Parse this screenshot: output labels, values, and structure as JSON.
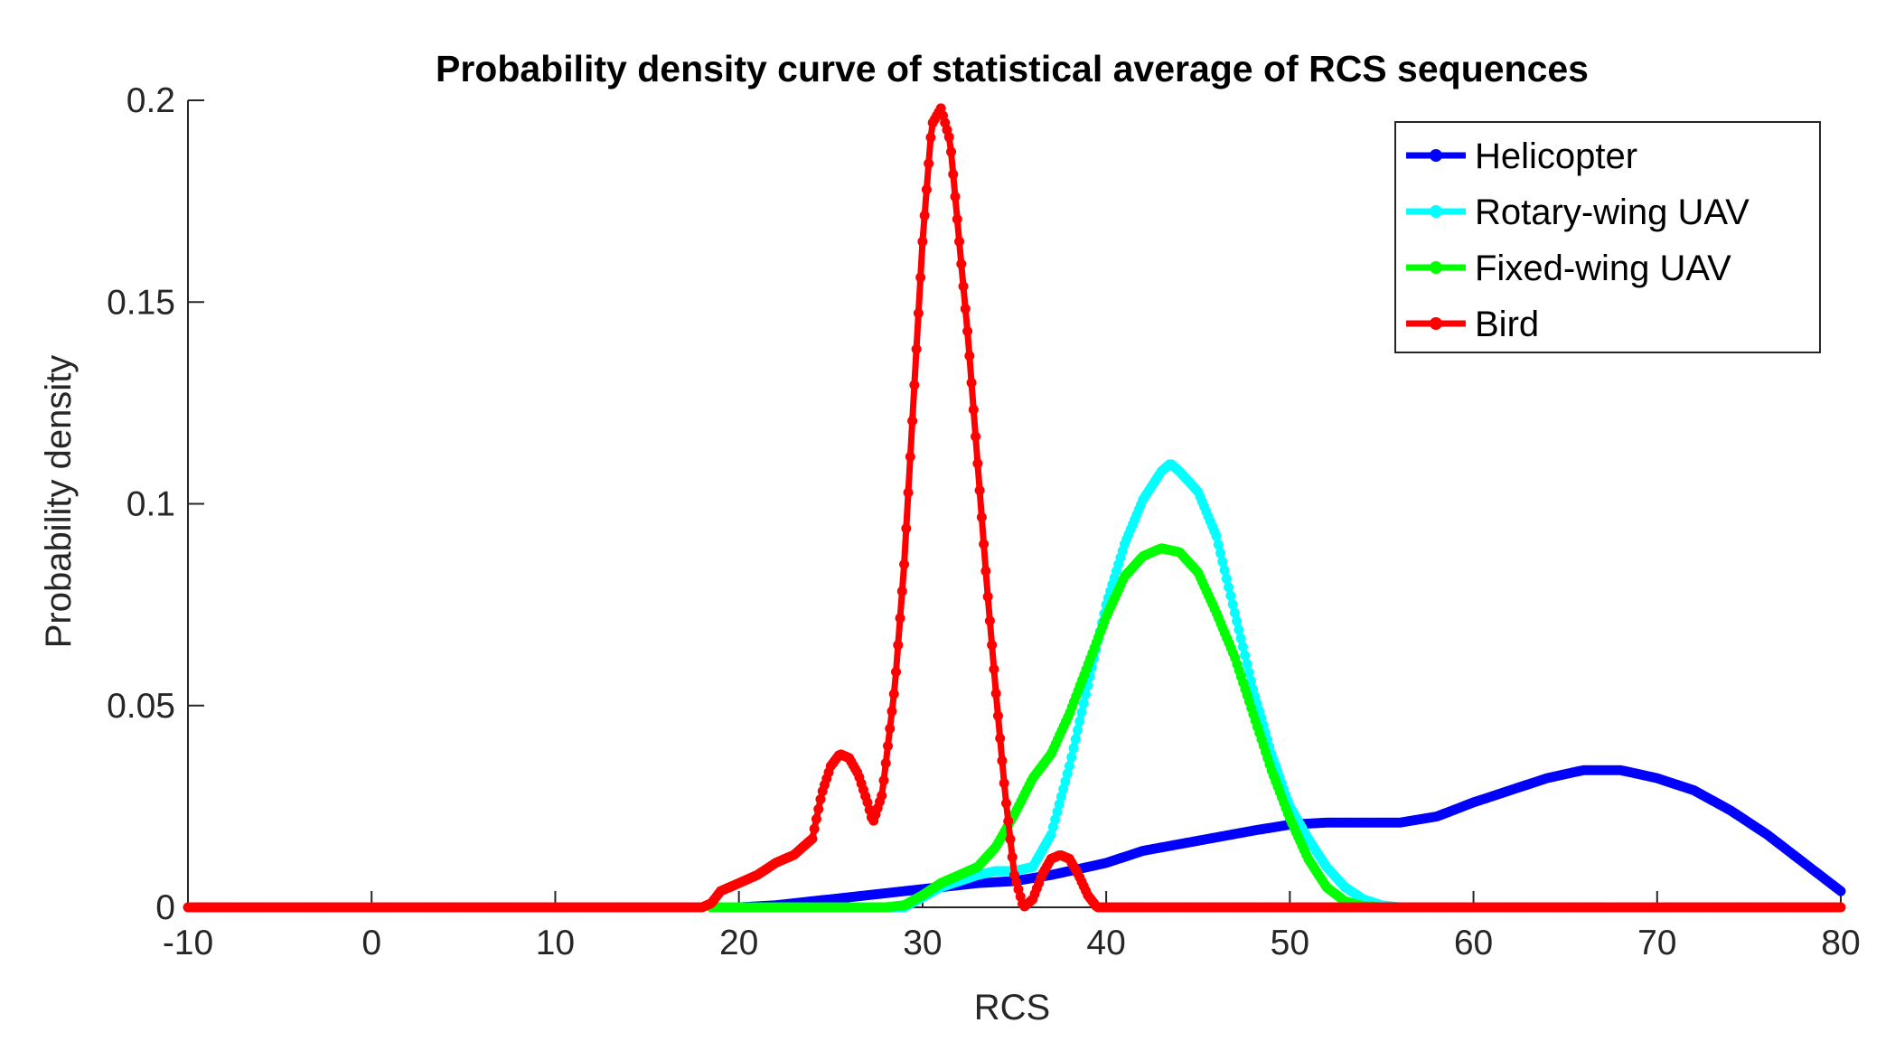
{
  "chart_data": {
    "type": "line",
    "title": "Probability density curve of statistical average of RCS sequences",
    "xlabel": "RCS",
    "ylabel": "Probability density",
    "xlim": [
      -10,
      80
    ],
    "ylim": [
      0,
      0.2
    ],
    "x_ticks": [
      "-10",
      "0",
      "10",
      "20",
      "30",
      "40",
      "50",
      "60",
      "70",
      "80"
    ],
    "y_ticks": [
      "0",
      "0.05",
      "0.1",
      "0.15",
      "0.2"
    ],
    "legend_position": "top-right",
    "series": [
      {
        "name": "Helicopter",
        "color": "#0000ff",
        "points": [
          [
            20,
            0
          ],
          [
            22,
            0.0005
          ],
          [
            25,
            0.002
          ],
          [
            28,
            0.0035
          ],
          [
            30,
            0.0045
          ],
          [
            33,
            0.006
          ],
          [
            35,
            0.0065
          ],
          [
            37,
            0.008
          ],
          [
            40,
            0.011
          ],
          [
            42,
            0.014
          ],
          [
            45,
            0.0165
          ],
          [
            48,
            0.019
          ],
          [
            50,
            0.0205
          ],
          [
            52,
            0.021
          ],
          [
            54,
            0.021
          ],
          [
            56,
            0.021
          ],
          [
            58,
            0.0225
          ],
          [
            60,
            0.026
          ],
          [
            62,
            0.029
          ],
          [
            64,
            0.032
          ],
          [
            66,
            0.034
          ],
          [
            68,
            0.034
          ],
          [
            70,
            0.032
          ],
          [
            72,
            0.029
          ],
          [
            74,
            0.024
          ],
          [
            76,
            0.018
          ],
          [
            78,
            0.011
          ],
          [
            80,
            0.004
          ]
        ]
      },
      {
        "name": "Rotary-wing UAV",
        "color": "#00ffff",
        "points": [
          [
            19,
            0
          ],
          [
            29,
            0
          ],
          [
            31,
            0.005
          ],
          [
            33,
            0.008
          ],
          [
            34,
            0.009
          ],
          [
            35,
            0.009
          ],
          [
            36,
            0.01
          ],
          [
            37,
            0.018
          ],
          [
            38,
            0.035
          ],
          [
            39,
            0.055
          ],
          [
            40,
            0.075
          ],
          [
            41,
            0.09
          ],
          [
            42,
            0.101
          ],
          [
            43,
            0.108
          ],
          [
            43.5,
            0.11
          ],
          [
            44,
            0.108
          ],
          [
            45,
            0.103
          ],
          [
            46,
            0.092
          ],
          [
            47,
            0.073
          ],
          [
            48,
            0.054
          ],
          [
            49,
            0.038
          ],
          [
            50,
            0.025
          ],
          [
            51,
            0.017
          ],
          [
            52,
            0.01
          ],
          [
            53,
            0.005
          ],
          [
            54,
            0.002
          ],
          [
            55,
            0.0005
          ],
          [
            56,
            0
          ]
        ]
      },
      {
        "name": "Fixed-wing UAV",
        "color": "#00ff00",
        "points": [
          [
            18.5,
            0
          ],
          [
            28,
            0
          ],
          [
            29,
            0.0005
          ],
          [
            30,
            0.003
          ],
          [
            31,
            0.006
          ],
          [
            32,
            0.008
          ],
          [
            33,
            0.01
          ],
          [
            34,
            0.015
          ],
          [
            35,
            0.023
          ],
          [
            36,
            0.032
          ],
          [
            37,
            0.038
          ],
          [
            38,
            0.048
          ],
          [
            39,
            0.06
          ],
          [
            40,
            0.072
          ],
          [
            41,
            0.082
          ],
          [
            42,
            0.087
          ],
          [
            43,
            0.089
          ],
          [
            44,
            0.088
          ],
          [
            45,
            0.083
          ],
          [
            46,
            0.073
          ],
          [
            47,
            0.062
          ],
          [
            48,
            0.048
          ],
          [
            49,
            0.034
          ],
          [
            50,
            0.022
          ],
          [
            51,
            0.012
          ],
          [
            52,
            0.005
          ],
          [
            53,
            0.0015
          ],
          [
            54,
            0.0003
          ],
          [
            55,
            0
          ]
        ]
      },
      {
        "name": "Bird",
        "color": "#ff0000",
        "points": [
          [
            -10,
            0
          ],
          [
            18,
            0
          ],
          [
            18.5,
            0.001
          ],
          [
            19,
            0.004
          ],
          [
            20,
            0.006
          ],
          [
            21,
            0.008
          ],
          [
            22,
            0.011
          ],
          [
            23,
            0.013
          ],
          [
            24,
            0.017
          ],
          [
            24.5,
            0.028
          ],
          [
            25,
            0.035
          ],
          [
            25.5,
            0.038
          ],
          [
            26,
            0.037
          ],
          [
            26.5,
            0.033
          ],
          [
            27,
            0.026
          ],
          [
            27.3,
            0.021
          ],
          [
            27.8,
            0.028
          ],
          [
            28.5,
            0.055
          ],
          [
            29,
            0.085
          ],
          [
            29.5,
            0.125
          ],
          [
            30,
            0.165
          ],
          [
            30.5,
            0.194
          ],
          [
            31,
            0.198
          ],
          [
            31.5,
            0.19
          ],
          [
            32,
            0.165
          ],
          [
            32.5,
            0.14
          ],
          [
            33,
            0.11
          ],
          [
            33.5,
            0.08
          ],
          [
            34,
            0.053
          ],
          [
            34.5,
            0.028
          ],
          [
            35,
            0.008
          ],
          [
            35.5,
            0
          ],
          [
            36,
            0.002
          ],
          [
            36.5,
            0.008
          ],
          [
            37,
            0.012
          ],
          [
            37.5,
            0.013
          ],
          [
            38,
            0.012
          ],
          [
            38.5,
            0.008
          ],
          [
            39,
            0.003
          ],
          [
            39.5,
            0
          ],
          [
            80,
            0
          ]
        ]
      }
    ]
  }
}
